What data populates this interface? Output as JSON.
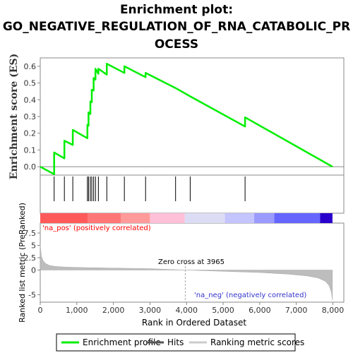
{
  "chart_data": {
    "type": "line",
    "title_lines": [
      "Enrichment plot:",
      "GO_NEGATIVE_REGULATION_OF_RNA_CATABOLIC_PR",
      "OCESS"
    ],
    "es_panel": {
      "ylabel": "Enrichment score (ES)",
      "ylim": [
        -0.05,
        0.65
      ],
      "yticks": [
        "0.0",
        "0.1",
        "0.2",
        "0.3",
        "0.4",
        "0.5",
        "0.6"
      ],
      "series": [
        {
          "name": "Enrichment profile",
          "color": "#00ee00",
          "x": [
            0,
            380,
            380,
            660,
            660,
            890,
            890,
            1290,
            1290,
            1320,
            1320,
            1370,
            1370,
            1410,
            1410,
            1460,
            1460,
            1510,
            1510,
            1590,
            1590,
            1820,
            1820,
            2300,
            2300,
            2880,
            2880,
            3700,
            4100,
            5600,
            5600,
            7990
          ],
          "y": [
            0.0,
            -0.045,
            0.085,
            0.05,
            0.155,
            0.13,
            0.22,
            0.17,
            0.25,
            0.245,
            0.325,
            0.315,
            0.39,
            0.385,
            0.46,
            0.455,
            0.53,
            0.52,
            0.585,
            0.555,
            0.585,
            0.55,
            0.615,
            0.56,
            0.6,
            0.535,
            0.56,
            0.47,
            0.42,
            0.24,
            0.295,
            0.0
          ]
        }
      ]
    },
    "hits": [
      380,
      660,
      890,
      1290,
      1320,
      1370,
      1410,
      1460,
      1510,
      1590,
      1820,
      2300,
      2880,
      3700,
      4100,
      5600
    ],
    "ranked_panel": {
      "ylabel": "Ranked list metric (PreRanked)",
      "ylim": [
        -6.5,
        9.5
      ],
      "yticks": [
        "7.5",
        "5",
        "2.5",
        "0",
        "-5"
      ],
      "xlabel": "Rank in Ordered Dataset",
      "xlim": [
        0,
        8300
      ],
      "xticks": [
        "0",
        "1,000",
        "2,000",
        "3,000",
        "4,000",
        "5,000",
        "6,000",
        "7,000",
        "8,000"
      ],
      "zero_cross_label": "Zero cross at 3965",
      "zero_cross": 3965,
      "pos_label": "'na_pos' (positively correlated)",
      "neg_label": "'na_neg' (negatively correlated)",
      "metric_curve": {
        "x": [
          0,
          30,
          80,
          150,
          250,
          400,
          700,
          1200,
          2000,
          3000,
          3965,
          5000,
          6000,
          6800,
          7300,
          7600,
          7800,
          7900,
          7960,
          7990
        ],
        "y": [
          5.2,
          2.8,
          1.9,
          1.3,
          0.95,
          0.75,
          0.6,
          0.5,
          0.4,
          0.28,
          0.0,
          -0.25,
          -0.5,
          -0.85,
          -1.2,
          -1.6,
          -2.3,
          -3.2,
          -4.5,
          -6.1
        ]
      }
    },
    "heatmap_colors": [
      "#ff5a5a",
      "#ff7676",
      "#ff9a9a",
      "#ffc0d8",
      "#dcdcf5",
      "#c4c4ff",
      "#9a9aff",
      "#6666ff",
      "#2a00cc"
    ],
    "heatmap_bounds": [
      0,
      1300,
      2200,
      3000,
      3950,
      5050,
      5850,
      6400,
      7650,
      7990
    ],
    "legend": {
      "profile_label": "Enrichment profile",
      "hits_label": "Hits",
      "metric_label": "Ranking metric scores"
    }
  }
}
